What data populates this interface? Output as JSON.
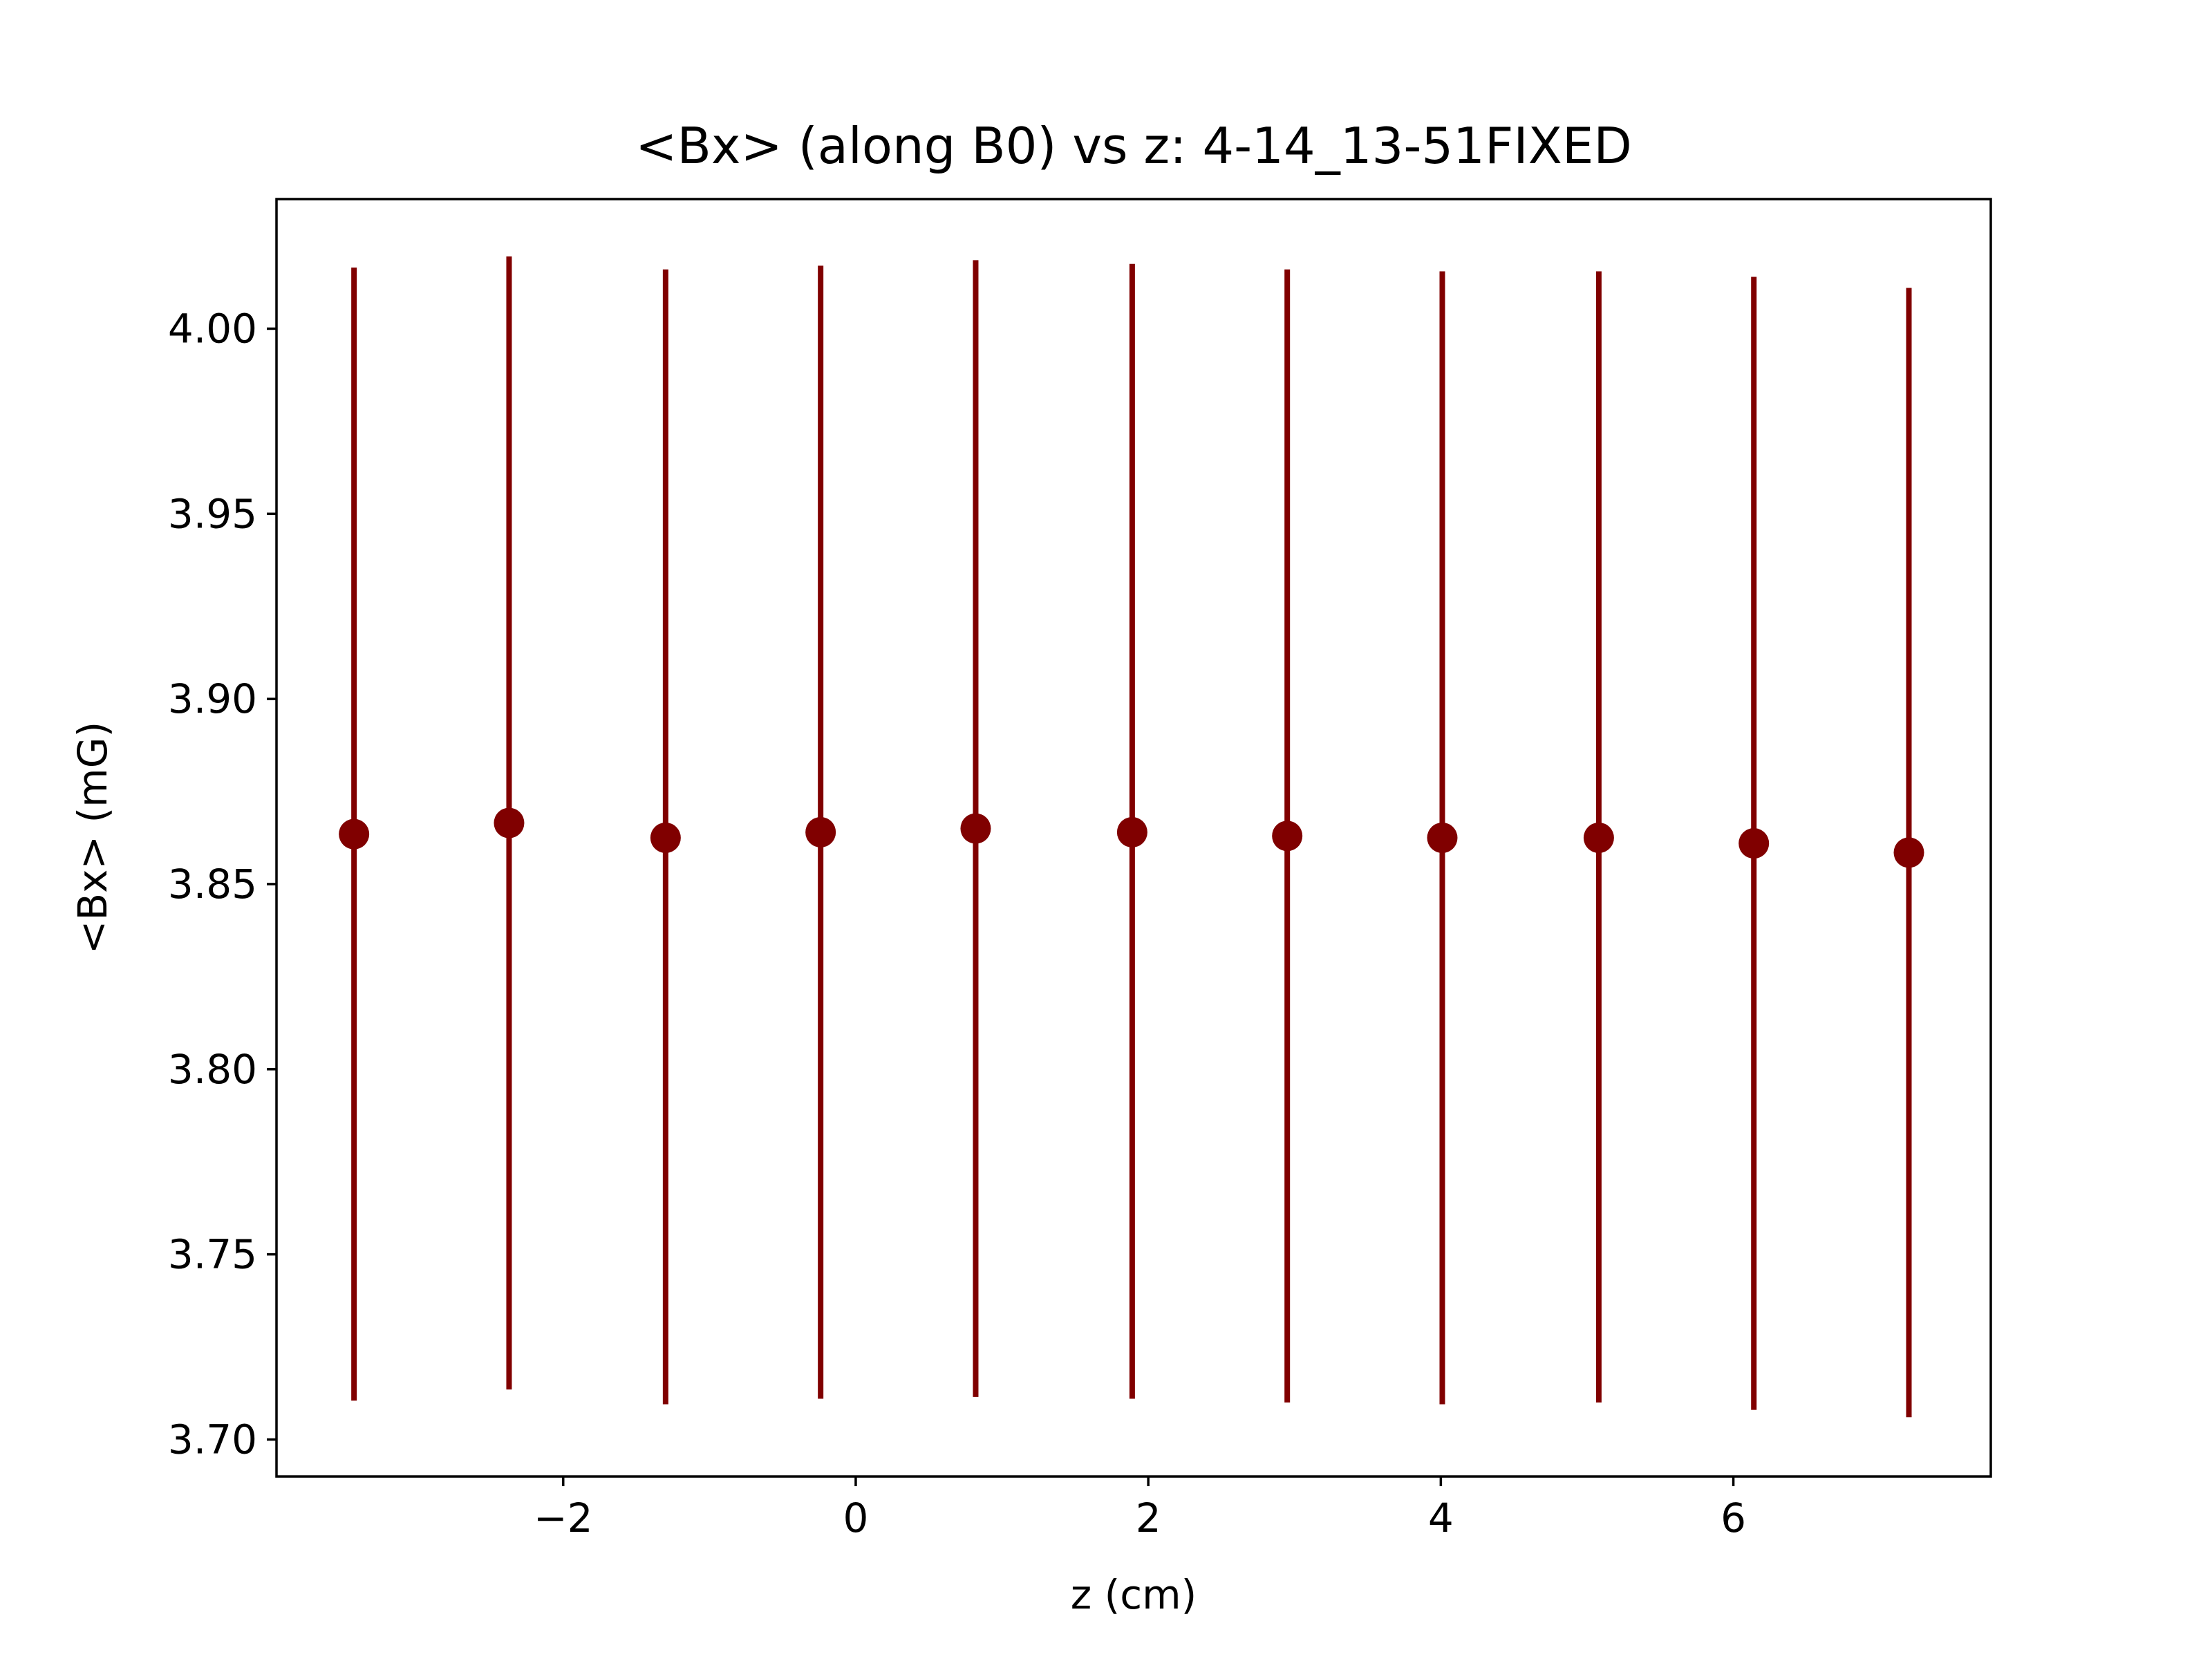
{
  "chart_data": {
    "type": "scatter",
    "title": "<Bx> (along B0) vs z: 4-14_13-51FIXED",
    "xlabel": "z (cm)",
    "ylabel": "<Bx> (mG)",
    "xlim": [
      -3.96,
      7.76
    ],
    "ylim": [
      3.69,
      4.035
    ],
    "xticks": [
      -2,
      0,
      2,
      4,
      6
    ],
    "xtick_labels": [
      "−2",
      "0",
      "2",
      "4",
      "6"
    ],
    "yticks": [
      3.7,
      3.75,
      3.8,
      3.85,
      3.9,
      3.95,
      4.0
    ],
    "ytick_labels": [
      "3.70",
      "3.75",
      "3.80",
      "3.85",
      "3.90",
      "3.95",
      "4.00"
    ],
    "grid": false,
    "color": "#800000",
    "series": [
      {
        "x": [
          -3.43,
          -2.37,
          -1.3,
          -0.24,
          0.82,
          1.89,
          2.95,
          4.01,
          5.08,
          6.14,
          7.2
        ],
        "y": [
          3.8635,
          3.8665,
          3.8625,
          3.864,
          3.865,
          3.864,
          3.863,
          3.8625,
          3.8625,
          3.861,
          3.8585
        ],
        "yerr_low": [
          3.7105,
          3.7135,
          3.7095,
          3.711,
          3.7115,
          3.711,
          3.71,
          3.7095,
          3.71,
          3.708,
          3.706
        ],
        "yerr_high": [
          4.0165,
          4.0195,
          4.016,
          4.017,
          4.0185,
          4.0175,
          4.016,
          4.0155,
          4.0155,
          4.014,
          4.011
        ]
      }
    ]
  }
}
